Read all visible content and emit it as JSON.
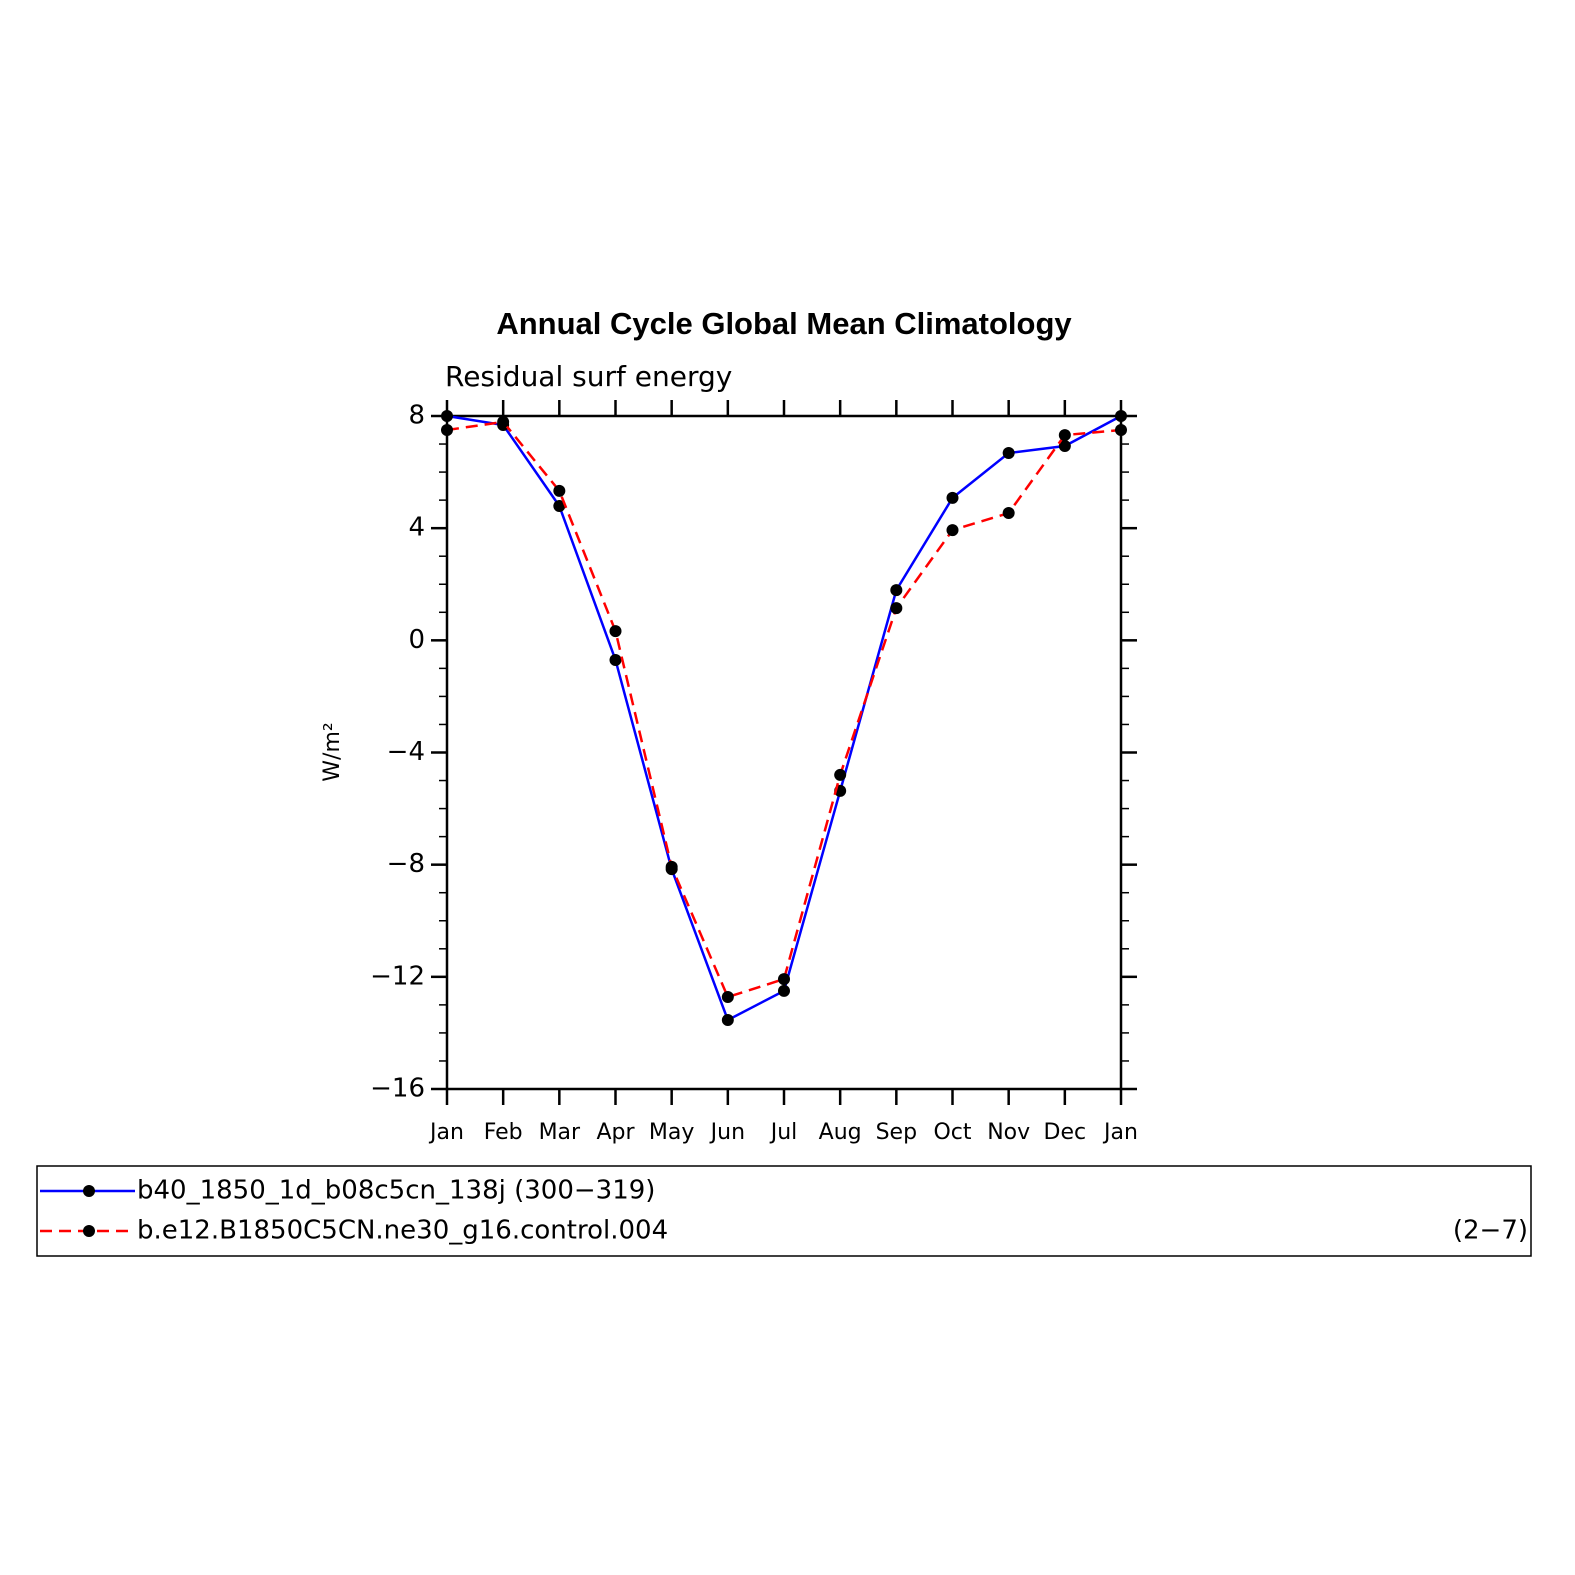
{
  "chart_data": {
    "type": "line",
    "title": "Annual Cycle Global Mean Climatology",
    "subtitle": "Residual surf energy",
    "ylabel": "W/m²",
    "annotation": "(2−7)",
    "categories": [
      "Jan",
      "Feb",
      "Mar",
      "Apr",
      "May",
      "Jun",
      "Jul",
      "Aug",
      "Sep",
      "Oct",
      "Nov",
      "Dec",
      "Jan"
    ],
    "series": [
      {
        "name": "b40_1850_1d_b08c5cn_138j (300−319)",
        "color": "#0000ff",
        "dash": false,
        "values": [
          8.0,
          7.68,
          4.79,
          -0.7,
          -8.16,
          -13.54,
          -12.5,
          -5.37,
          1.79,
          5.08,
          6.68,
          6.93,
          8.0
        ]
      },
      {
        "name": "b.e12.B1850C5CN.ne30_g16.control.004",
        "color": "#ff0000",
        "dash": true,
        "values": [
          7.5,
          7.79,
          5.33,
          0.33,
          -8.08,
          -12.72,
          -12.08,
          -4.8,
          1.15,
          3.93,
          4.54,
          7.32,
          7.5
        ]
      }
    ],
    "ylim": [
      -16,
      8
    ],
    "yticks": [
      {
        "value": -16,
        "label": "−16"
      },
      {
        "value": -12,
        "label": "−12"
      },
      {
        "value": -8,
        "label": "−8"
      },
      {
        "value": -4,
        "label": "−4"
      },
      0,
      4,
      8
    ]
  }
}
